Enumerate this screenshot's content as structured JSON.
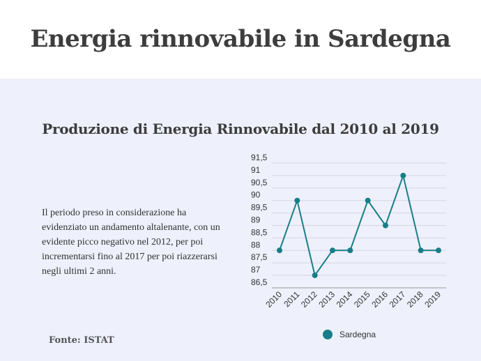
{
  "header": {
    "title": "Energia rinnovabile in Sardegna"
  },
  "panel": {
    "chart_heading": "Produzione di Energia Rinnovabile dal 2010 al 2019",
    "description": "Il periodo preso in considerazione ha evidenziato un andamento altalenante, con un evidente picco negativo nel 2012, per poi incrementarsi fino al 2017 per poi riazzerarsi negli ultimi 2 anni.",
    "source": "Fonte: ISTAT"
  },
  "chart_data": {
    "type": "line",
    "x": [
      "2010",
      "2011",
      "2012",
      "2013",
      "2014",
      "2015",
      "2016",
      "2017",
      "2018",
      "2019"
    ],
    "series": [
      {
        "name": "Sardegna",
        "values": [
          88,
          90,
          87,
          88,
          88,
          90,
          89,
          91,
          88,
          88
        ]
      }
    ],
    "y_ticks": [
      "86,5",
      "87",
      "87,5",
      "88",
      "88,5",
      "89",
      "89,5",
      "90",
      "90,5",
      "91",
      "91,5"
    ],
    "ylim": [
      86.5,
      91.5
    ],
    "grid": true,
    "legend": "bottom",
    "colors": {
      "line": "#177e89",
      "grid": "#d6d6e2",
      "axis": "#9a9a9a"
    }
  }
}
